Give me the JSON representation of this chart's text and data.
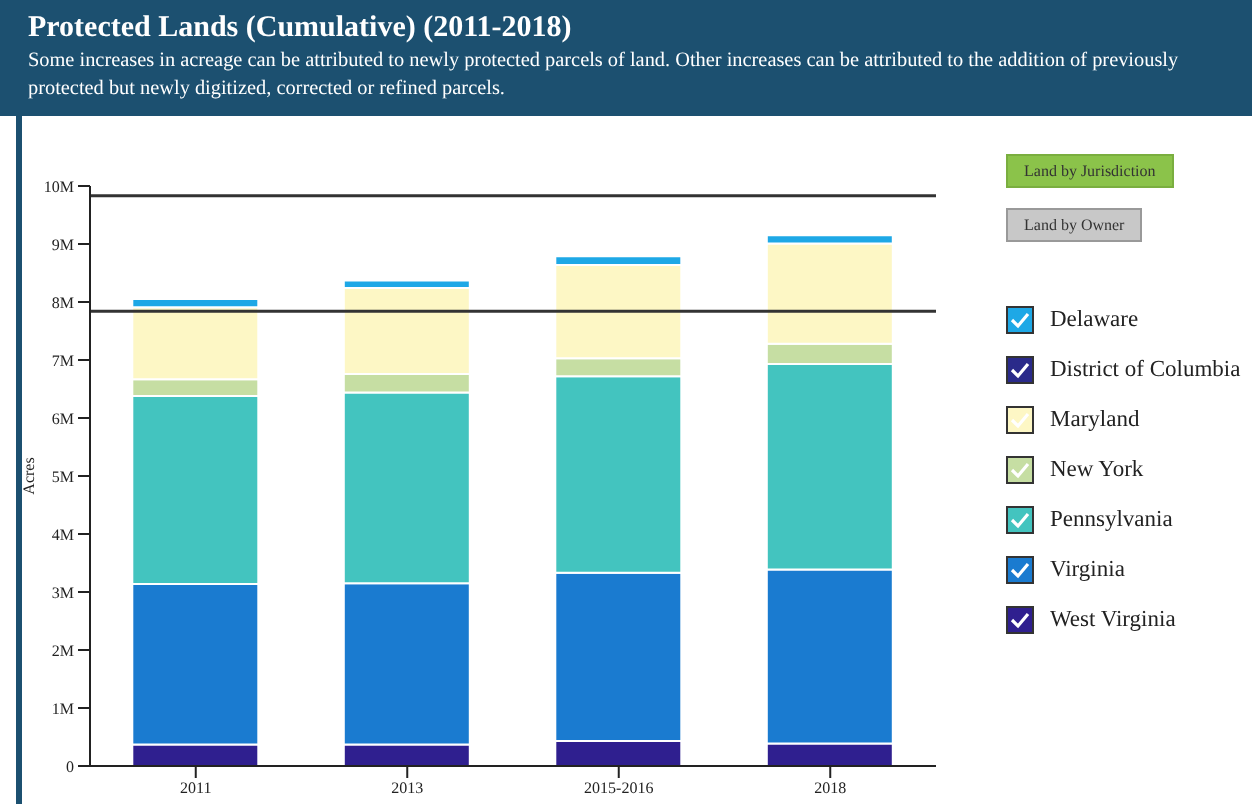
{
  "chart_data": {
    "type": "bar",
    "stacked": true,
    "title": "Protected Lands (Cumulative) (2011-2018)",
    "subtitle": "Some increases in acreage can be attributed to newly protected parcels of land. Other increases can be attributed to the addition of previously protected but newly digitized, corrected or refined parcels.",
    "ylabel": "Acres",
    "categories": [
      "2011",
      "2013",
      "2015-2016",
      "2018"
    ],
    "series": [
      {
        "name": "West Virginia",
        "color": "#2f1f8f",
        "values": [
          370000,
          370000,
          430000,
          390000
        ]
      },
      {
        "name": "Virginia",
        "color": "#1a7bd0",
        "values": [
          2770000,
          2780000,
          2900000,
          3000000
        ]
      },
      {
        "name": "Pennsylvania",
        "color": "#43c4bf",
        "values": [
          3240000,
          3290000,
          3390000,
          3540000
        ]
      },
      {
        "name": "New York",
        "color": "#c6dea3",
        "values": [
          290000,
          320000,
          310000,
          350000
        ]
      },
      {
        "name": "Maryland",
        "color": "#fdf7c5",
        "values": [
          1240000,
          1480000,
          1610000,
          1730000
        ]
      },
      {
        "name": "District of Columbia",
        "color": "#2a2a8a",
        "values": [
          0,
          0,
          0,
          0
        ]
      },
      {
        "name": "Delaware",
        "color": "#1ea8e6",
        "values": [
          140000,
          130000,
          150000,
          140000
        ]
      }
    ],
    "ylim": [
      0,
      10000000
    ],
    "yticks": [
      {
        "value": 0,
        "label": "0"
      },
      {
        "value": 1000000,
        "label": "1M"
      },
      {
        "value": 2000000,
        "label": "2M"
      },
      {
        "value": 3000000,
        "label": "3M"
      },
      {
        "value": 4000000,
        "label": "4M"
      },
      {
        "value": 5000000,
        "label": "5M"
      },
      {
        "value": 6000000,
        "label": "6M"
      },
      {
        "value": 7000000,
        "label": "7M"
      },
      {
        "value": 8000000,
        "label": "8M"
      },
      {
        "value": 9000000,
        "label": "9M"
      },
      {
        "value": 10000000,
        "label": "10M"
      }
    ],
    "ref_lines": [
      {
        "axis": "y",
        "value": 9830000,
        "color": "#333333"
      },
      {
        "axis": "y",
        "value": 7840000,
        "color": "#333333"
      }
    ],
    "annotations": [
      "Land by Jurisdiction",
      "Land by Owner"
    ],
    "legend": "right"
  }
}
